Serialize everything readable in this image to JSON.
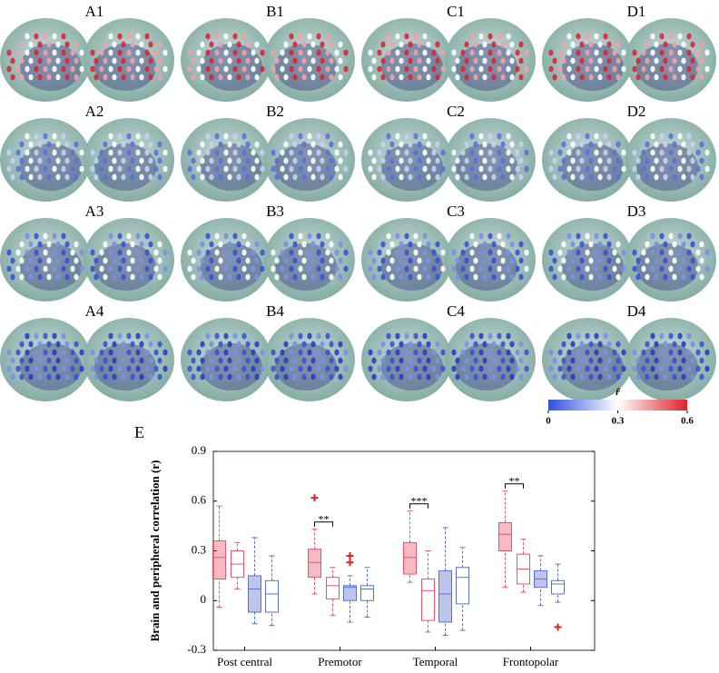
{
  "brain_panels": {
    "labels": [
      "A1",
      "B1",
      "C1",
      "D1",
      "A2",
      "B2",
      "C2",
      "D2",
      "A3",
      "B3",
      "C3",
      "D3",
      "A4",
      "B4",
      "C4",
      "D4"
    ]
  },
  "colorbar": {
    "label": "r̄",
    "lim": [
      0,
      0.6
    ],
    "ticks": [
      0,
      0.3,
      0.6
    ]
  },
  "chart_data": {
    "type": "box",
    "panel_label": "E",
    "ylabel": "Brain and peripheral correlation (r)",
    "categories": [
      "Post central",
      "Premotor",
      "Temporal",
      "Frontopolar"
    ],
    "ylim": [
      -0.3,
      0.9
    ],
    "yticks": [
      -0.3,
      0,
      0.3,
      0.6,
      0.9
    ],
    "series": [
      {
        "color": "#e8536b",
        "filled": true,
        "whisker_low": [
          -0.04,
          0.04,
          0.11,
          0.08
        ],
        "q1": [
          0.13,
          0.14,
          0.16,
          0.3
        ],
        "median": [
          0.26,
          0.23,
          0.26,
          0.4
        ],
        "q3": [
          0.36,
          0.31,
          0.35,
          0.47
        ],
        "whisker_high": [
          0.57,
          0.43,
          0.54,
          0.66
        ],
        "outliers": [
          [],
          [
            0.62
          ],
          [],
          []
        ]
      },
      {
        "color": "#e8536b",
        "filled": false,
        "whisker_low": [
          0.07,
          -0.09,
          -0.19,
          0.05
        ],
        "q1": [
          0.14,
          0.01,
          -0.12,
          0.1
        ],
        "median": [
          0.22,
          0.09,
          0.06,
          0.19
        ],
        "q3": [
          0.3,
          0.14,
          0.13,
          0.28
        ],
        "whisker_high": [
          0.35,
          0.2,
          0.3,
          0.37
        ],
        "outliers": [
          [],
          [],
          [],
          []
        ]
      },
      {
        "color": "#5a6fd6",
        "filled": true,
        "whisker_low": [
          -0.14,
          -0.13,
          -0.21,
          -0.03
        ],
        "q1": [
          -0.07,
          0,
          -0.13,
          0.08
        ],
        "median": [
          0.07,
          0.08,
          0.04,
          0.13
        ],
        "q3": [
          0.15,
          0.09,
          0.18,
          0.18
        ],
        "whisker_high": [
          0.38,
          0.15,
          0.44,
          0.27
        ],
        "outliers": [
          [],
          [
            0.23,
            0.27
          ],
          [],
          []
        ]
      },
      {
        "color": "#5a6fd6",
        "filled": false,
        "whisker_low": [
          -0.15,
          -0.1,
          -0.18,
          -0.01
        ],
        "q1": [
          -0.07,
          0,
          -0.02,
          0.04
        ],
        "median": [
          0.04,
          0.07,
          0.14,
          0.1
        ],
        "q3": [
          0.12,
          0.09,
          0.2,
          0.12
        ],
        "whisker_high": [
          0.27,
          0.2,
          0.32,
          0.22
        ],
        "outliers": [
          [],
          [],
          [],
          [
            -0.16
          ]
        ]
      }
    ],
    "significance": [
      {
        "category": 1,
        "between": [
          0,
          1
        ],
        "label": "**"
      },
      {
        "category": 2,
        "between": [
          0,
          1
        ],
        "label": "***"
      },
      {
        "category": 3,
        "between": [
          0,
          1
        ],
        "label": "**"
      }
    ]
  }
}
